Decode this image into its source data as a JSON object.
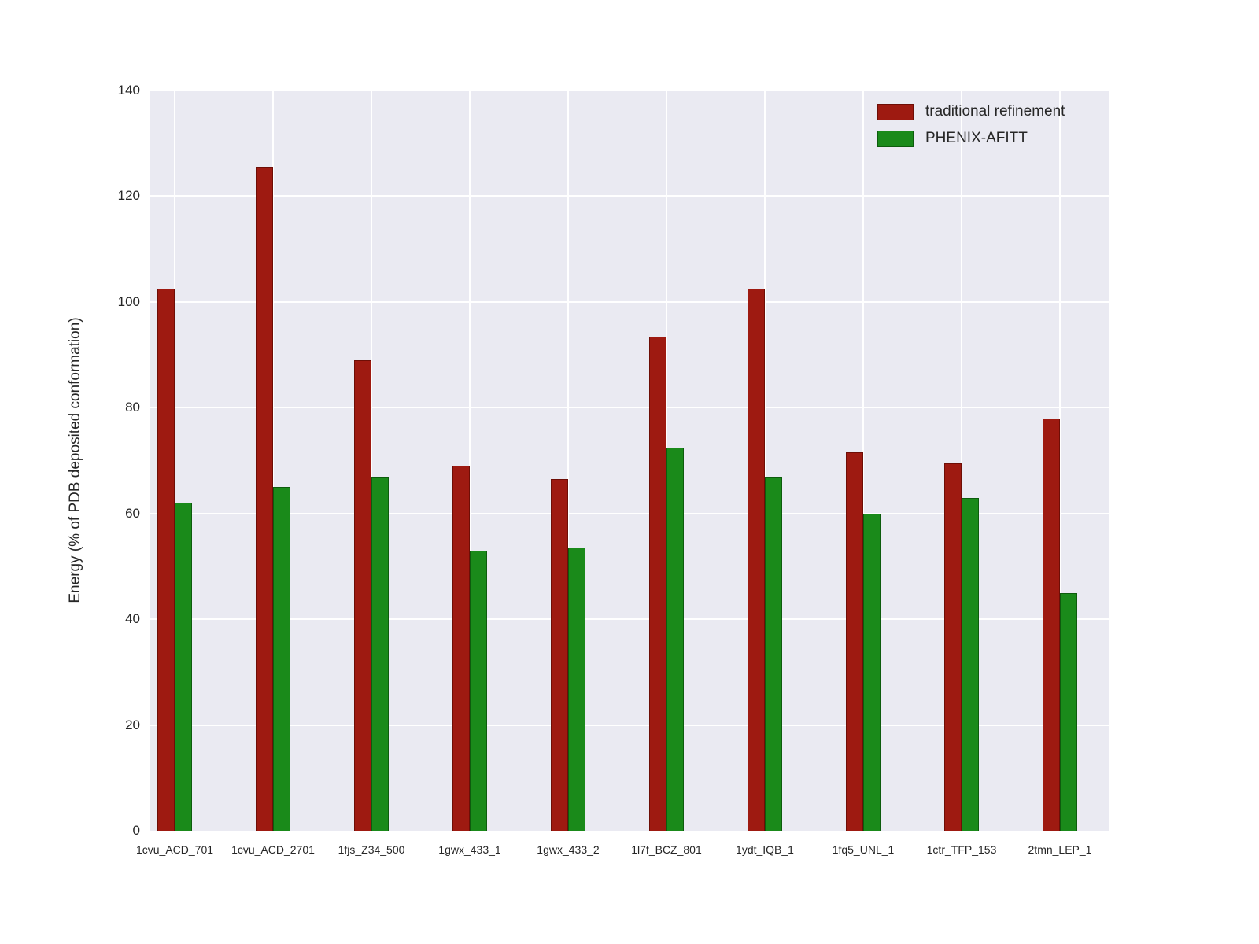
{
  "figure": {
    "background": "#ffffff",
    "plot_background": "#eaeaf2",
    "grid_color": "#ffffff",
    "text_color": "#262626"
  },
  "chart_data": {
    "type": "bar",
    "title": "",
    "xlabel": "",
    "ylabel": "Energy (% of PDB deposited conformation)",
    "ylim": [
      0,
      140
    ],
    "yticks": [
      0,
      20,
      40,
      60,
      80,
      100,
      120,
      140
    ],
    "grid": true,
    "legend_position": "upper right",
    "categories": [
      "1cvu_ACD_701",
      "1cvu_ACD_2701",
      "1fjs_Z34_500",
      "1gwx_433_1",
      "1gwx_433_2",
      "1l7f_BCZ_801",
      "1ydt_IQB_1",
      "1fq5_UNL_1",
      "1ctr_TFP_153",
      "2tmn_LEP_1"
    ],
    "series": [
      {
        "name": "traditional refinement",
        "color": "#9e1a11",
        "edge_color": "#6e0e06",
        "values": [
          102.5,
          125.5,
          89,
          69,
          66.5,
          93.5,
          102.5,
          71.5,
          69.5,
          78
        ]
      },
      {
        "name": "PHENIX-AFITT",
        "color": "#1a8a1a",
        "edge_color": "#0d5c0d",
        "values": [
          62,
          65,
          67,
          53,
          53.5,
          72.5,
          67,
          60,
          63,
          45
        ]
      }
    ]
  }
}
